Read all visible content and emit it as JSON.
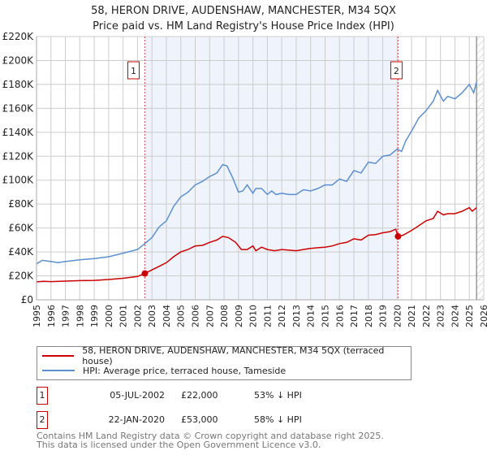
{
  "chart_data": {
    "type": "line",
    "title": "58, HERON DRIVE, AUDENSHAW, MANCHESTER, M34 5QX",
    "subtitle": "Price paid vs. HM Land Registry's House Price Index (HPI)",
    "xlim": [
      1995,
      2026
    ],
    "ylim": [
      0,
      220000
    ],
    "x_ticks": [
      "1995",
      "1996",
      "1997",
      "1998",
      "1999",
      "2000",
      "2001",
      "2002",
      "2003",
      "2004",
      "2005",
      "2006",
      "2007",
      "2008",
      "2009",
      "2010",
      "2011",
      "2012",
      "2013",
      "2014",
      "2015",
      "2016",
      "2017",
      "2018",
      "2019",
      "2020",
      "2021",
      "2022",
      "2023",
      "2024",
      "2025",
      "2026"
    ],
    "y_ticks": [
      {
        "v": 0,
        "label": "£0"
      },
      {
        "v": 20000,
        "label": "£20K"
      },
      {
        "v": 40000,
        "label": "£40K"
      },
      {
        "v": 60000,
        "label": "£60K"
      },
      {
        "v": 80000,
        "label": "£80K"
      },
      {
        "v": 100000,
        "label": "£100K"
      },
      {
        "v": 120000,
        "label": "£120K"
      },
      {
        "v": 140000,
        "label": "£140K"
      },
      {
        "v": 160000,
        "label": "£160K"
      },
      {
        "v": 180000,
        "label": "£180K"
      },
      {
        "v": 200000,
        "label": "£200K"
      },
      {
        "v": 220000,
        "label": "£220K"
      }
    ],
    "grid": true,
    "shaded_range": [
      2002.51,
      2020.06
    ],
    "forecast_hatch_from": 2025.5,
    "series": [
      {
        "name": "58, HERON DRIVE, AUDENSHAW, MANCHESTER, M34 5QX (terraced house)",
        "color": "#cc0000",
        "x": [
          1995,
          1995.5,
          1996,
          1997,
          1998,
          1999,
          2000,
          2001,
          2002,
          2002.51,
          2003,
          2003.5,
          2004,
          2004.5,
          2005,
          2005.5,
          2006,
          2006.5,
          2007,
          2007.5,
          2007.9,
          2008.3,
          2008.8,
          2009.2,
          2009.6,
          2010,
          2010.2,
          2010.6,
          2011,
          2011.5,
          2012,
          2012.5,
          2013,
          2013.5,
          2014,
          2014.5,
          2015,
          2015.5,
          2016,
          2016.5,
          2017,
          2017.5,
          2018,
          2018.5,
          2019,
          2019.5,
          2019.9,
          2020.06,
          2020.4,
          2021,
          2021.5,
          2022,
          2022.5,
          2022.8,
          2023.2,
          2023.5,
          2024,
          2024.5,
          2025,
          2025.2,
          2025.5
        ],
        "values": [
          15000,
          15500,
          15200,
          15600,
          16000,
          16200,
          17000,
          18000,
          19500,
          22000,
          25000,
          28000,
          31000,
          36000,
          40000,
          42000,
          45000,
          45500,
          48000,
          50000,
          53000,
          52000,
          48000,
          42000,
          42000,
          45000,
          41000,
          44000,
          42000,
          41000,
          42000,
          41500,
          41000,
          42000,
          43000,
          43500,
          44000,
          45000,
          47000,
          48000,
          51000,
          50000,
          54000,
          54500,
          56000,
          57000,
          59000,
          53000,
          54000,
          58000,
          62000,
          66000,
          68000,
          74000,
          71000,
          72000,
          72000,
          74000,
          77000,
          74000,
          77000
        ]
      },
      {
        "name": "HPI: Average price, terraced house, Tameside",
        "color": "#5b8fd0",
        "x": [
          1995,
          1995.4,
          1996,
          1996.5,
          1997,
          1998,
          1999,
          2000,
          2001,
          2002,
          2002.51,
          2003,
          2003.5,
          2004,
          2004.5,
          2005,
          2005.5,
          2006,
          2006.5,
          2007,
          2007.5,
          2007.9,
          2008.2,
          2008.6,
          2009,
          2009.3,
          2009.6,
          2010,
          2010.2,
          2010.6,
          2011,
          2011.3,
          2011.6,
          2012,
          2012.5,
          2013,
          2013.5,
          2014,
          2014.5,
          2015,
          2015.5,
          2016,
          2016.5,
          2017,
          2017.5,
          2018,
          2018.5,
          2019,
          2019.5,
          2020,
          2020.3,
          2020.6,
          2021,
          2021.5,
          2022,
          2022.5,
          2022.8,
          2023.2,
          2023.5,
          2024,
          2024.5,
          2025,
          2025.3,
          2025.5
        ],
        "values": [
          30000,
          33000,
          32000,
          31000,
          32000,
          33500,
          34500,
          36000,
          39000,
          42000,
          47000,
          52000,
          61000,
          66000,
          78000,
          86000,
          90000,
          96000,
          99000,
          103000,
          106000,
          113000,
          112000,
          102000,
          90000,
          91000,
          96000,
          89000,
          93000,
          93000,
          88000,
          91000,
          88000,
          89000,
          88000,
          88000,
          92000,
          91000,
          93000,
          96000,
          96000,
          101000,
          99000,
          108000,
          106000,
          115000,
          114000,
          120000,
          121000,
          126000,
          124000,
          133000,
          141000,
          152000,
          158000,
          166000,
          175000,
          166000,
          170000,
          168000,
          173000,
          180000,
          173000,
          182000
        ]
      }
    ],
    "markers": [
      {
        "label": "1",
        "x": 2002.51,
        "y": 22000
      },
      {
        "label": "2",
        "x": 2020.06,
        "y": 53000
      }
    ]
  },
  "legend": [
    {
      "label": "58, HERON DRIVE, AUDENSHAW, MANCHESTER, M34 5QX (terraced house)",
      "color": "#cc0000"
    },
    {
      "label": "HPI: Average price, terraced house, Tameside",
      "color": "#5b8fd0"
    }
  ],
  "transactions": [
    {
      "num": "1",
      "date": "05-JUL-2002",
      "price": "£22,000",
      "hpi": "53% ↓ HPI"
    },
    {
      "num": "2",
      "date": "22-JAN-2020",
      "price": "£53,000",
      "hpi": "58% ↓ HPI"
    }
  ],
  "footer": {
    "line1": "Contains HM Land Registry data © Crown copyright and database right 2025.",
    "line2": "This data is licensed under the Open Government Licence v3.0."
  }
}
